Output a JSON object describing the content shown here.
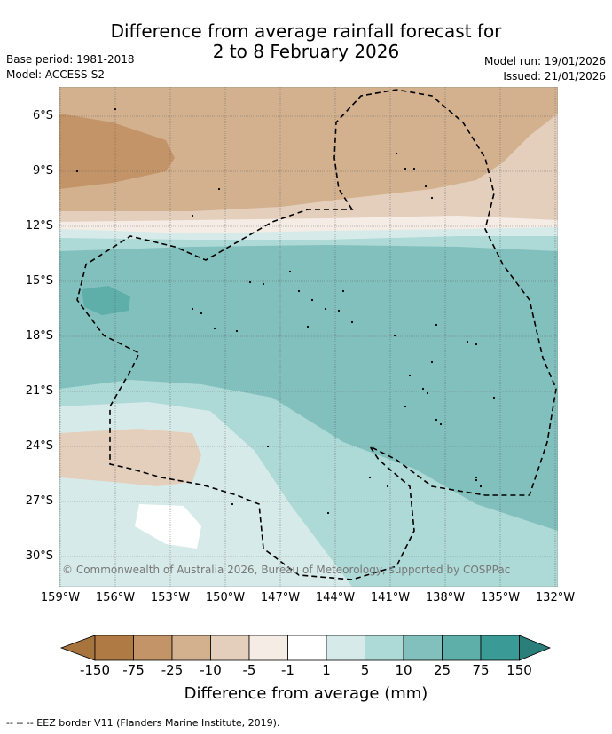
{
  "title_line1": "Difference from average rainfall forecast for",
  "title_line2": "2 to 8 February 2026",
  "base_period": "Base period: 1981-2018",
  "model": "Model: ACCESS-S2",
  "model_run": "Model run: 19/01/2026",
  "issued": "Issued: 21/01/2026",
  "copyright": "© Commonwealth of Australia 2026, Bureau of Meteorology, supported by COSPPac",
  "lat_labels": [
    "6°S",
    "9°S",
    "12°S",
    "15°S",
    "18°S",
    "21°S",
    "24°S",
    "27°S",
    "30°S"
  ],
  "lon_labels": [
    "159°W",
    "156°W",
    "153°W",
    "150°W",
    "147°W",
    "144°W",
    "141°W",
    "138°W",
    "135°W",
    "132°W"
  ],
  "colorbar": {
    "title": "Difference from average (mm)",
    "ticks": [
      "-150",
      "-75",
      "-25",
      "-10",
      "-5",
      "-1",
      "1",
      "5",
      "10",
      "25",
      "75",
      "150"
    ],
    "colors": [
      "#a8743e",
      "#b07a44",
      "#c39468",
      "#d3b18f",
      "#e4cfbd",
      "#f5ece6",
      "#ffffff",
      "#d6ebe9",
      "#add9d6",
      "#82c0bd",
      "#5eaeaa",
      "#3a9a95",
      "#2a7f7a"
    ]
  },
  "footer": "--  --  -- EEZ border V11 (Flanders Marine Institute, 2019)."
}
